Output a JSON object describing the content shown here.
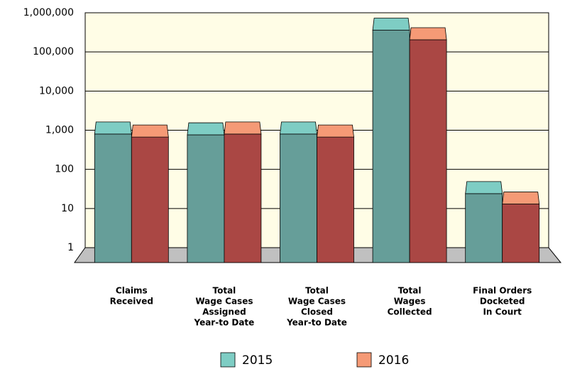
{
  "chart_data": {
    "type": "bar3d",
    "categories": [
      [
        "Claims",
        "Received"
      ],
      [
        "Total",
        "Wage Cases",
        "Assigned",
        "Year-to Date"
      ],
      [
        "Total",
        "Wage Cases",
        "Closed",
        "Year-to Date"
      ],
      [
        "Total",
        "Wages",
        "Collected"
      ],
      [
        "Final Orders",
        "Docketed",
        "In Court"
      ]
    ],
    "series": [
      {
        "name": "2015",
        "color": "#669e99",
        "top_color": "#7ecdc4",
        "values": [
          800,
          760,
          800,
          360000,
          24
        ]
      },
      {
        "name": "2016",
        "color": "#aa4744",
        "top_color": "#f59a76",
        "values": [
          670,
          800,
          670,
          205000,
          13
        ]
      }
    ],
    "log_scale": true,
    "ylim": [
      1,
      1000000
    ],
    "yticks": [
      1,
      10,
      100,
      {
        "value": 1000,
        "label": "1,000"
      },
      {
        "value": 10000,
        "label": "10,000"
      },
      {
        "value": 100000,
        "label": "100,000"
      },
      {
        "value": 1000000,
        "label": "1,000,000"
      }
    ],
    "grid": true,
    "legend": "bottom"
  }
}
